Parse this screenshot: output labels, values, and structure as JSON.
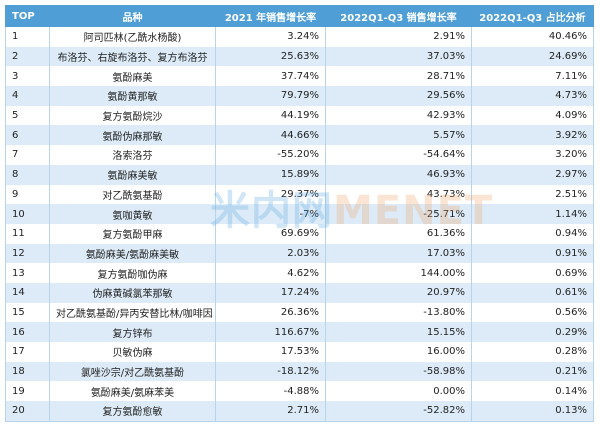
{
  "table": {
    "header": [
      "TOP",
      "品种",
      "2021 年销售增长率",
      "2022Q1-Q3 销售增长率",
      "2022Q1-Q3 占比分析"
    ],
    "rows": [
      [
        "1",
        "阿司匹林(乙酰水杨酸)",
        "3.24%",
        "2.91%",
        "40.46%"
      ],
      [
        "2",
        "布洛芬、右旋布洛芬、复方布洛芬",
        "25.63%",
        "37.03%",
        "24.69%"
      ],
      [
        "3",
        "氨酚麻美",
        "37.74%",
        "28.71%",
        "7.11%"
      ],
      [
        "4",
        "氨酚黄那敏",
        "79.79%",
        "29.56%",
        "4.73%"
      ],
      [
        "5",
        "复方氨酚烷沙",
        "44.19%",
        "42.93%",
        "4.09%"
      ],
      [
        "6",
        "氨酚伪麻那敏",
        "44.66%",
        "5.57%",
        "3.92%"
      ],
      [
        "7",
        "洛索洛芬",
        "-55.20%",
        "-54.64%",
        "3.20%"
      ],
      [
        "8",
        "氨酚麻美敏",
        "15.89%",
        "46.93%",
        "2.97%"
      ],
      [
        "9",
        "对乙酰氨基酚",
        "29.37%",
        "43.73%",
        "2.51%"
      ],
      [
        "10",
        "氨咖黄敏",
        "-7%",
        "-25.71%",
        "1.14%"
      ],
      [
        "11",
        "复方氨酚甲麻",
        "69.69%",
        "61.36%",
        "0.94%"
      ],
      [
        "12",
        "氨酚麻美/氨酚麻美敏",
        "2.03%",
        "17.03%",
        "0.91%"
      ],
      [
        "13",
        "复方氨酚咖伪麻",
        "4.62%",
        "144.00%",
        "0.69%"
      ],
      [
        "14",
        "伪麻黄碱氯苯那敏",
        "17.24%",
        "20.97%",
        "0.61%"
      ],
      [
        "15",
        "对乙酰氨基酚/异丙安替比林/咖啡因",
        "26.36%",
        "-13.80%",
        "0.56%"
      ],
      [
        "16",
        "复方锌布",
        "116.67%",
        "15.15%",
        "0.29%"
      ],
      [
        "17",
        "贝敏伪麻",
        "17.53%",
        "16.00%",
        "0.28%"
      ],
      [
        "18",
        "氯唑沙宗/对乙酰氨基酚",
        "-18.12%",
        "-58.98%",
        "0.21%"
      ],
      [
        "19",
        "氨酚麻美/氨麻苯美",
        "-4.88%",
        "0.00%",
        "0.14%"
      ],
      [
        "20",
        "复方氨酚愈敏",
        "2.71%",
        "-52.82%",
        "0.13%"
      ]
    ]
  },
  "watermark": {
    "cn": "米内网",
    "en": "MENET"
  }
}
